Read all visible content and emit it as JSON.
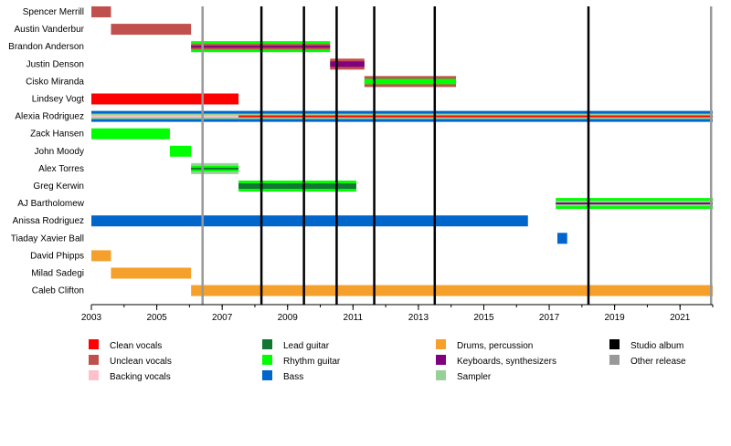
{
  "chart_data": {
    "type": "timeline",
    "title": "",
    "xlabel": "",
    "ylabel": "",
    "xlim": [
      2003,
      2022
    ],
    "x_ticks": [
      "2003",
      "2005",
      "2007",
      "2009",
      "2011",
      "2013",
      "2015",
      "2017",
      "2019",
      "2021"
    ],
    "colors": {
      "clean_vocals": "#ff0000",
      "unclean_vocals": "#c0504d",
      "backing_vocals": "#ffc0cb",
      "lead_guitar": "#117733",
      "rhythm_guitar": "#00ff00",
      "bass": "#0066cc",
      "drums": "#f5a02a",
      "keyboards": "#800080",
      "sampler": "#98d098",
      "studio_album": "#000000",
      "other_release": "#999999"
    },
    "members": [
      {
        "name": "Spencer Merrill",
        "periods": [
          {
            "start": 2003.0,
            "end": 2003.6,
            "roles": [
              "unclean_vocals"
            ]
          }
        ]
      },
      {
        "name": "Austin Vanderbur",
        "periods": [
          {
            "start": 2003.6,
            "end": 2006.05,
            "roles": [
              "unclean_vocals"
            ]
          }
        ]
      },
      {
        "name": "Brandon Anderson",
        "periods": [
          {
            "start": 2006.05,
            "end": 2010.3,
            "roles": [
              "rhythm_guitar",
              "unclean_vocals",
              "keyboards"
            ]
          }
        ]
      },
      {
        "name": "Justin Denson",
        "periods": [
          {
            "start": 2010.3,
            "end": 2011.35,
            "roles": [
              "unclean_vocals",
              "keyboards"
            ]
          }
        ]
      },
      {
        "name": "Cisko Miranda",
        "periods": [
          {
            "start": 2011.35,
            "end": 2014.15,
            "roles": [
              "unclean_vocals",
              "rhythm_guitar"
            ]
          }
        ]
      },
      {
        "name": "Lindsey Vogt",
        "periods": [
          {
            "start": 2003.0,
            "end": 2007.5,
            "roles": [
              "clean_vocals"
            ]
          }
        ]
      },
      {
        "name": "Alexia Rodriguez",
        "periods": [
          {
            "start": 2003.0,
            "end": 2007.5,
            "roles": [
              "bass",
              "sampler",
              "backing_vocals"
            ]
          },
          {
            "start": 2007.5,
            "end": 2022.0,
            "roles": [
              "bass",
              "sampler",
              "clean_vocals"
            ]
          }
        ]
      },
      {
        "name": "Zack Hansen",
        "periods": [
          {
            "start": 2003.0,
            "end": 2005.4,
            "roles": [
              "rhythm_guitar"
            ]
          }
        ]
      },
      {
        "name": "John Moody",
        "periods": [
          {
            "start": 2005.4,
            "end": 2006.05,
            "roles": [
              "rhythm_guitar"
            ]
          }
        ]
      },
      {
        "name": "Alex Torres",
        "periods": [
          {
            "start": 2006.05,
            "end": 2007.5,
            "roles": [
              "sampler",
              "rhythm_guitar",
              "lead_guitar"
            ]
          }
        ]
      },
      {
        "name": "Greg Kerwin",
        "periods": [
          {
            "start": 2007.5,
            "end": 2011.1,
            "roles": [
              "rhythm_guitar",
              "lead_guitar"
            ]
          }
        ]
      },
      {
        "name": "AJ Bartholomew",
        "periods": [
          {
            "start": 2017.2,
            "end": 2022.0,
            "roles": [
              "rhythm_guitar",
              "sampler",
              "keyboards"
            ]
          }
        ]
      },
      {
        "name": "Anissa Rodriguez",
        "periods": [
          {
            "start": 2003.0,
            "end": 2016.35,
            "roles": [
              "bass"
            ]
          }
        ]
      },
      {
        "name": "Tiaday Xavier Ball",
        "periods": [
          {
            "start": 2017.25,
            "end": 2017.55,
            "roles": [
              "bass"
            ]
          }
        ]
      },
      {
        "name": "David Phipps",
        "periods": [
          {
            "start": 2003.0,
            "end": 2003.6,
            "roles": [
              "drums"
            ]
          }
        ]
      },
      {
        "name": "Milad Sadegi",
        "periods": [
          {
            "start": 2003.6,
            "end": 2006.05,
            "roles": [
              "drums"
            ]
          }
        ]
      },
      {
        "name": "Caleb Clifton",
        "periods": [
          {
            "start": 2006.05,
            "end": 2022.0,
            "roles": [
              "drums"
            ]
          }
        ]
      }
    ],
    "events": [
      {
        "x": 2006.4,
        "type": "other_release"
      },
      {
        "x": 2008.2,
        "type": "studio_album"
      },
      {
        "x": 2009.5,
        "type": "studio_album"
      },
      {
        "x": 2010.5,
        "type": "studio_album"
      },
      {
        "x": 2011.65,
        "type": "studio_album"
      },
      {
        "x": 2013.5,
        "type": "studio_album"
      },
      {
        "x": 2018.2,
        "type": "studio_album"
      },
      {
        "x": 2021.95,
        "type": "other_release"
      }
    ],
    "legend": [
      {
        "label": "Clean vocals",
        "key": "clean_vocals"
      },
      {
        "label": "Unclean vocals",
        "key": "unclean_vocals"
      },
      {
        "label": "Backing vocals",
        "key": "backing_vocals"
      },
      {
        "label": "Lead guitar",
        "key": "lead_guitar"
      },
      {
        "label": "Rhythm guitar",
        "key": "rhythm_guitar"
      },
      {
        "label": "Bass",
        "key": "bass"
      },
      {
        "label": "Drums, percussion",
        "key": "drums"
      },
      {
        "label": "Keyboards, synthesizers",
        "key": "keyboards"
      },
      {
        "label": "Sampler",
        "key": "sampler"
      },
      {
        "label": "Studio album",
        "key": "studio_album"
      },
      {
        "label": "Other release",
        "key": "other_release"
      }
    ]
  }
}
